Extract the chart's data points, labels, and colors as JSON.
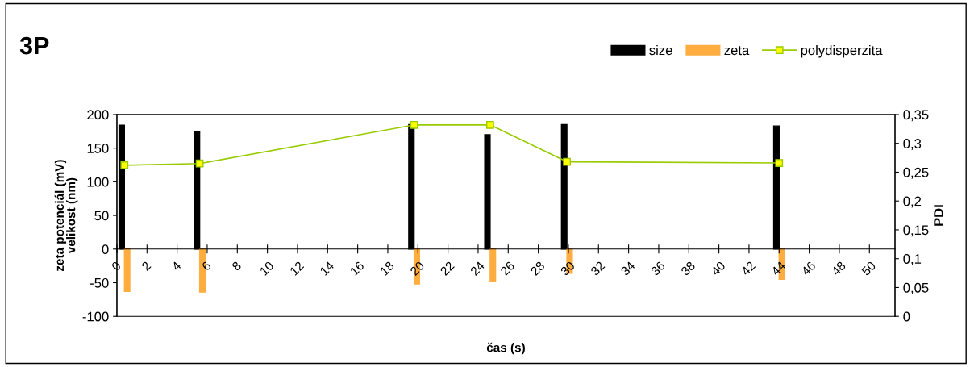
{
  "chart_data": {
    "type": "bar",
    "title": "3P",
    "xlabel": "čas (s)",
    "ylabel": "zeta potenciál (mV)\nvelikost (nm)",
    "y2label": "PDI",
    "x": [
      0.5,
      5.5,
      19.75,
      24.8,
      29.9,
      44
    ],
    "series": [
      {
        "name": "size",
        "color": "#000000",
        "values": [
          184,
          175,
          185,
          170,
          185,
          183
        ]
      },
      {
        "name": "zeta",
        "color": "#ffad3f",
        "values": [
          -63,
          -64,
          -52,
          -48,
          -36,
          -45
        ]
      },
      {
        "name": "polydisperzita",
        "type": "line",
        "axis": "y2",
        "color": "#99cc00",
        "marker": "square",
        "values": [
          0.262,
          0.265,
          0.332,
          0.332,
          0.268,
          0.266
        ]
      }
    ],
    "xlim": [
      0,
      51.7
    ],
    "xticks": [
      0,
      2,
      4,
      6,
      8,
      10,
      12,
      14,
      16,
      18,
      20,
      22,
      24,
      26,
      28,
      30,
      32,
      34,
      36,
      38,
      40,
      42,
      44,
      46,
      48,
      50
    ],
    "ylim": [
      -100,
      200
    ],
    "yticks": [
      -100,
      -50,
      0,
      50,
      100,
      150,
      200
    ],
    "y2lim": [
      0,
      0.35
    ],
    "y2ticks": [
      0,
      {
        "value": 0.05,
        "label": "0,05"
      },
      {
        "value": 0.1,
        "label": "0,1"
      },
      {
        "value": 0.15,
        "label": "0,15"
      },
      {
        "value": 0.2,
        "label": "0,2"
      },
      {
        "value": 0.25,
        "label": "0,25"
      },
      {
        "value": 0.3,
        "label": "0,3"
      },
      {
        "value": 0.35,
        "label": "0,35"
      }
    ],
    "legend": "top right",
    "grid": false
  }
}
